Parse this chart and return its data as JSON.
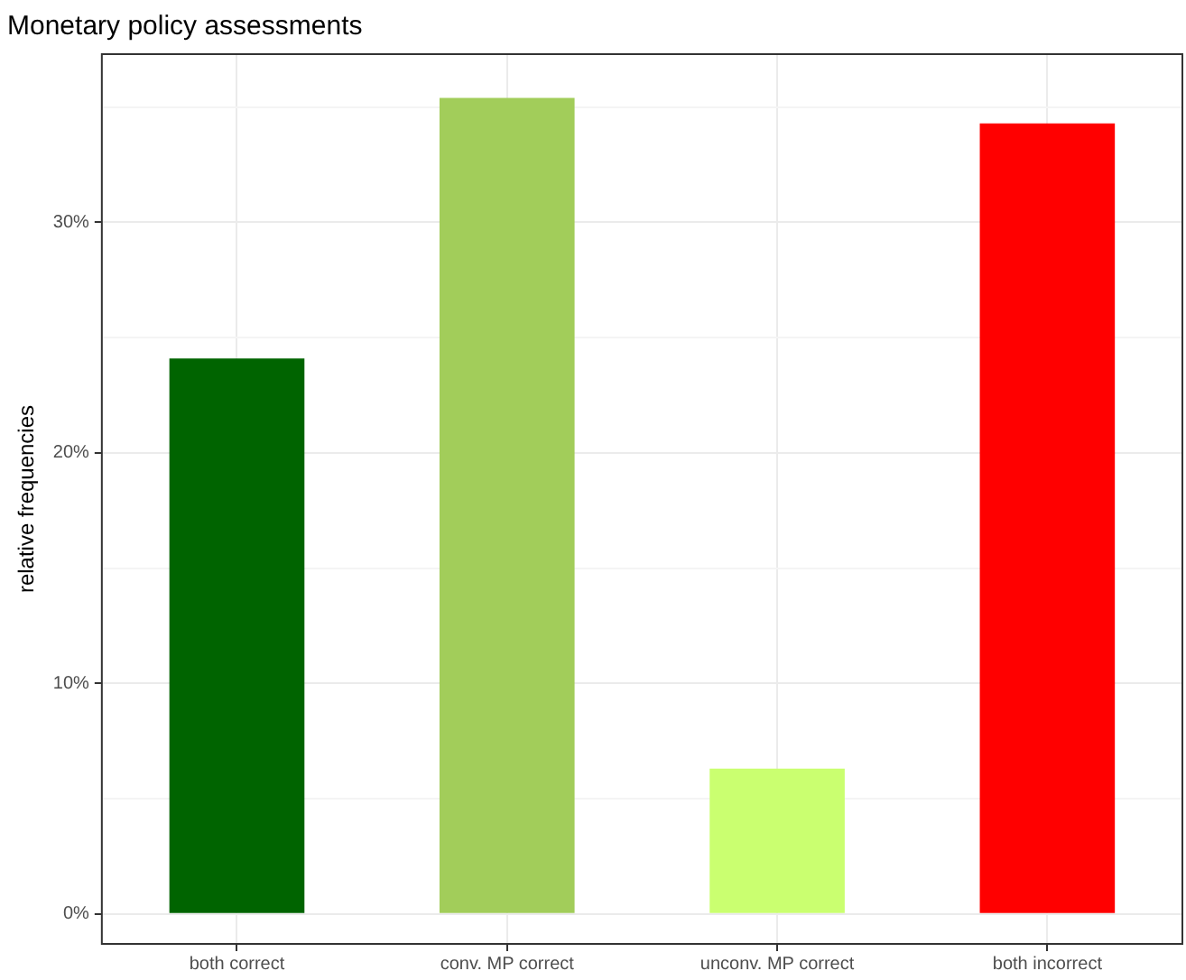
{
  "chart_data": {
    "type": "bar",
    "title": "Monetary policy assessments",
    "ylabel": "relative frequencies",
    "categories": [
      "both correct",
      "conv. MP correct",
      "unconv. MP correct",
      "both incorrect"
    ],
    "values": [
      24.1,
      35.4,
      6.3,
      34.3
    ],
    "colors": [
      "#006400",
      "#a2cd5a",
      "#caff70",
      "#ff0000"
    ],
    "ylim": [
      -1.3,
      37.3
    ],
    "yticks": [
      {
        "value": 0,
        "label": "0%"
      },
      {
        "value": 5,
        "label": null
      },
      {
        "value": 10,
        "label": "10%"
      },
      {
        "value": 15,
        "label": null
      },
      {
        "value": 20,
        "label": "20%"
      },
      {
        "value": 25,
        "label": null
      },
      {
        "value": 30,
        "label": "30%"
      },
      {
        "value": 35,
        "label": null
      }
    ],
    "grid": true,
    "legend": false
  }
}
